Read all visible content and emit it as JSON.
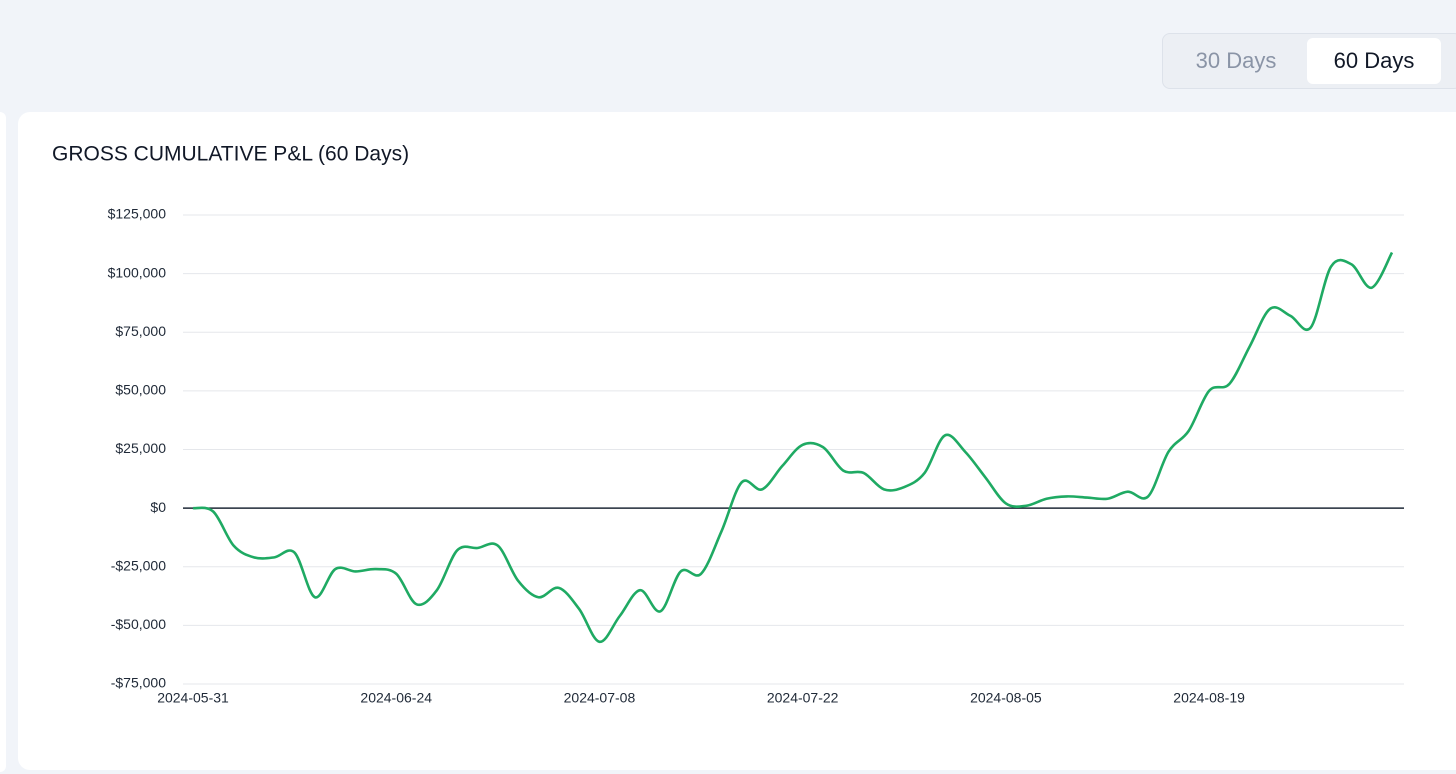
{
  "controls": {
    "range_options": [
      "30 Days",
      "60 Days"
    ],
    "selected": 1
  },
  "chart_data": {
    "type": "line",
    "title": "GROSS CUMULATIVE P&L (60 Days)",
    "categories": [
      "2024-05-31",
      null,
      null,
      null,
      null,
      null,
      null,
      null,
      null,
      null,
      "2024-06-24",
      null,
      null,
      null,
      null,
      null,
      null,
      null,
      null,
      null,
      "2024-07-08",
      null,
      null,
      null,
      null,
      null,
      null,
      null,
      null,
      null,
      "2024-07-22",
      null,
      null,
      null,
      null,
      null,
      null,
      null,
      null,
      null,
      "2024-08-05",
      null,
      null,
      null,
      null,
      null,
      null,
      null,
      null,
      null,
      "2024-08-19",
      null,
      null,
      null,
      null,
      null,
      null,
      null,
      null,
      null
    ],
    "series": [
      {
        "name": "Gross Cumulative P&L",
        "color": "#1faa63",
        "values": [
          0,
          -1500,
          -16000,
          -21000,
          -21000,
          -19000,
          -38000,
          -26000,
          -27000,
          -26000,
          -28000,
          -41000,
          -35000,
          -18000,
          -17000,
          -16000,
          -31000,
          -38000,
          -34000,
          -43000,
          -57000,
          -46000,
          -35000,
          -44000,
          -27000,
          -28000,
          -10000,
          11000,
          8000,
          18000,
          27000,
          26000,
          16000,
          15000,
          8000,
          9000,
          15000,
          31000,
          24000,
          13000,
          2000,
          1000,
          4000,
          5000,
          4500,
          4000,
          7000,
          5000,
          24000,
          33000,
          50000,
          53000,
          69000,
          85000,
          82000,
          77000,
          103000,
          104000,
          94000,
          109000
        ]
      }
    ],
    "ylim": [
      -75000,
      125000
    ],
    "yticks": [
      {
        "value": -75000,
        "label": "-$75,000"
      },
      {
        "value": -50000,
        "label": "-$50,000"
      },
      {
        "value": -25000,
        "label": "-$25,000"
      },
      {
        "value": 0,
        "label": "$0"
      },
      {
        "value": 25000,
        "label": "$25,000"
      },
      {
        "value": 50000,
        "label": "$50,000"
      },
      {
        "value": 75000,
        "label": "$75,000"
      },
      {
        "value": 100000,
        "label": "$100,000"
      },
      {
        "value": 125000,
        "label": "$125,000"
      }
    ],
    "grid": true
  }
}
